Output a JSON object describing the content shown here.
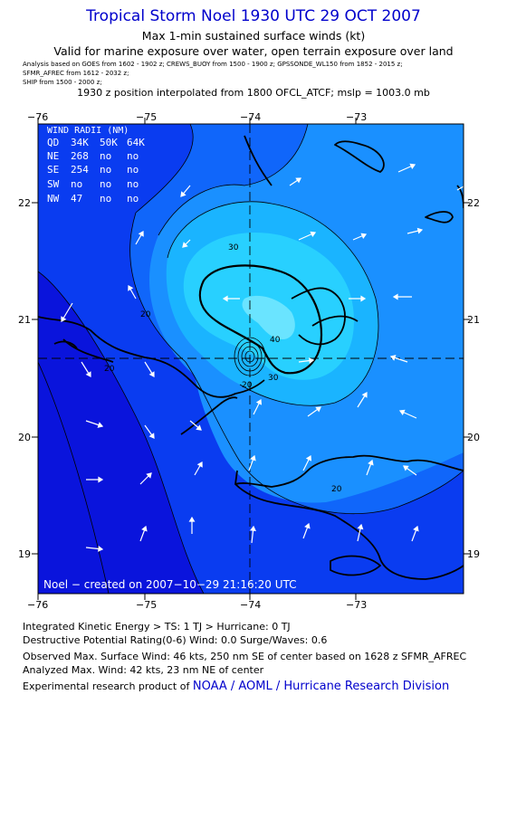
{
  "header": {
    "title": "Tropical Storm Noel 1930 UTC 29 OCT 2007",
    "subtitle1": "Max 1-min sustained surface winds (kt)",
    "subtitle2": "Valid for marine exposure over water, open terrain exposure over land",
    "analysis_lines": [
      "Analysis based on  GOES from  1602 - 1902 z;   CREWS_BUOY from  1500 - 1900 z;   GPSSONDE_WL150 from  1852 - 2015 z;",
      "SFMR_AFREC from  1612 - 2032 z;",
      "SHIP from  1500 - 2000 z;"
    ],
    "position_note": "1930 z position interpolated from 1800 OFCL_ATCF; mslp = 1003.0 mb"
  },
  "map": {
    "lon_ticks": [
      "−76",
      "−75",
      "−74",
      "−73"
    ],
    "lat_ticks": [
      "22",
      "21",
      "20",
      "19"
    ],
    "contour_labels": [
      "30",
      "20",
      "20",
      "40",
      "30",
      "20",
      "20"
    ],
    "credit": "Noel − created on 2007−10−29 21:16:20 UTC",
    "colors": {
      "c15": "#0a14dc",
      "c20": "#0a3cf0",
      "c25": "#1066fa",
      "c30": "#1a90ff",
      "c35": "#1ab4ff",
      "c40": "#28d0ff",
      "c45": "#6ae4ff"
    }
  },
  "wind_radii": {
    "title": "WIND RADII (NM)",
    "columns": [
      "QD",
      "34K",
      "50K",
      "64K"
    ],
    "rows": [
      [
        "NE",
        "268",
        "no",
        "no"
      ],
      [
        "SE",
        "254",
        "no",
        "no"
      ],
      [
        "SW",
        "no",
        "no",
        "no"
      ],
      [
        "NW",
        "47",
        "no",
        "no"
      ]
    ]
  },
  "footer": {
    "ike": "Integrated Kinetic Energy > TS: 1 TJ   > Hurricane: 0 TJ",
    "dpr": "Destructive Potential Rating(0-6)  Wind: 0.0 Surge/Waves: 0.6",
    "observed": "Observed Max. Surface Wind: 46 kts, 250 nm SE of center based on 1628 z SFMR_AFREC",
    "analyzed": "Analyzed Max. Wind: 42 kts, 23 nm NE of center",
    "product_prefix": "Experimental research product of",
    "product_link": "NOAA / AOML / Hurricane Research Division"
  }
}
